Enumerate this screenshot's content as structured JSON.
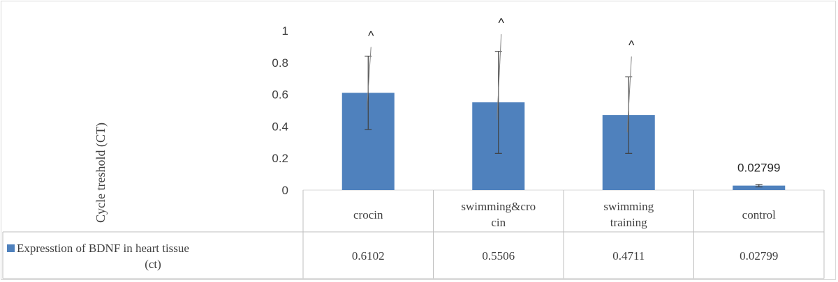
{
  "chart_data": {
    "type": "bar",
    "ylabel": "Cycle treshold (CT)",
    "ylim": [
      0,
      1
    ],
    "yticks": [
      "0",
      "0.2",
      "0.4",
      "0.6",
      "0.8",
      "1"
    ],
    "grid": false,
    "legend": "data table",
    "categories": [
      {
        "line1": "crocin",
        "line2": ""
      },
      {
        "line1": "swimming&cro",
        "line2": "cin"
      },
      {
        "line1": "swimming",
        "line2": "training"
      },
      {
        "line1": "control",
        "line2": ""
      }
    ],
    "series": [
      {
        "name_line1": "Expresstion of BDNF in heart tissue",
        "name_line2": "(ct)",
        "color": "#4f81bd",
        "values": [
          0.6102,
          0.5506,
          0.4711,
          0.02799
        ],
        "value_labels": [
          "0.6102",
          "0.5506",
          "0.4711",
          "0.02799"
        ],
        "error_low": [
          0.38,
          0.23,
          0.23,
          0.02
        ],
        "error_high": [
          0.84,
          0.87,
          0.71,
          0.035
        ]
      }
    ],
    "annotations": [
      {
        "category_index": 0,
        "text": "^",
        "value": 0.88
      },
      {
        "category_index": 1,
        "text": "^",
        "value": 0.96
      },
      {
        "category_index": 2,
        "text": "^",
        "value": 0.82
      }
    ],
    "data_label": {
      "category_index": 3,
      "text": "0.02799"
    }
  }
}
